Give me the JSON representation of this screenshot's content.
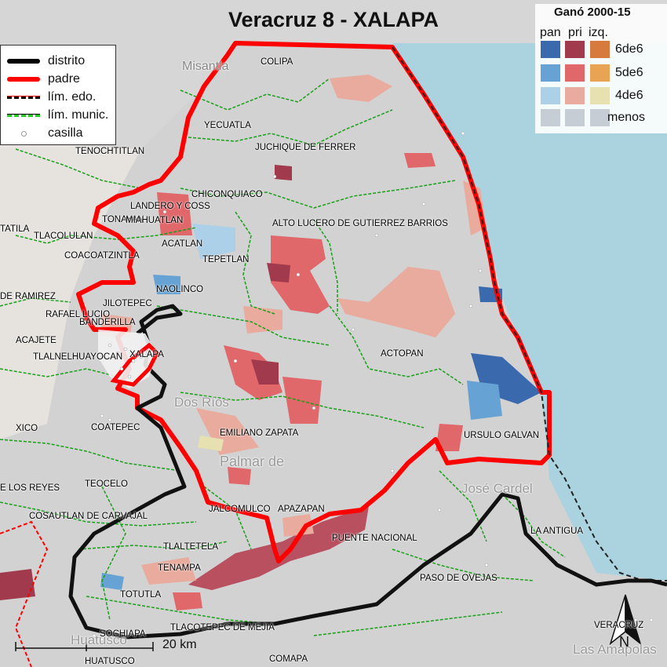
{
  "title": "Veracruz 8 - XALAPA",
  "legend": {
    "items": [
      {
        "label": "distrito",
        "color": "#000000"
      },
      {
        "label": "padre",
        "color": "#ff0000"
      },
      {
        "label": "lím. edo.",
        "color": "#ff0000"
      },
      {
        "label": "lím. munic.",
        "color": "#22cc22"
      },
      {
        "label": "casilla",
        "color": "#999999"
      }
    ]
  },
  "winner_legend": {
    "title": "Ganó 2000-15",
    "parties": [
      "pan",
      "pri",
      "izq."
    ],
    "rows": [
      {
        "label": "6de6",
        "colors": [
          "#3a6aad",
          "#a03a4c",
          "#d77a3e"
        ]
      },
      {
        "label": "5de6",
        "colors": [
          "#66a3d4",
          "#e0676a",
          "#e8a452"
        ]
      },
      {
        "label": "4de6",
        "colors": [
          "#acd0e8",
          "#e8ab9d",
          "#e7e0b0"
        ]
      },
      {
        "label": "menos",
        "colors": [
          "#c6cdd4",
          "#c6cdd4",
          "#c6cdd4"
        ]
      }
    ]
  },
  "municipalities": [
    {
      "name": "COLIPA"
    },
    {
      "name": "YECUATLA"
    },
    {
      "name": "JUCHIQUE DE FERRER"
    },
    {
      "name": "TENOCHTITLAN"
    },
    {
      "name": "CHICONQUIACO"
    },
    {
      "name": "LANDERO Y COSS"
    },
    {
      "name": "TONAYAN"
    },
    {
      "name": "MIAHUATLAN"
    },
    {
      "name": "ALTO LUCERO DE GUTIERREZ BARRIOS"
    },
    {
      "name": "TATILA"
    },
    {
      "name": "TLACOLULAN"
    },
    {
      "name": "ACATLAN"
    },
    {
      "name": "COACOATZINTLA"
    },
    {
      "name": "TEPETLAN"
    },
    {
      "name": "NAOLINCO"
    },
    {
      "name": "DE RAMIREZ"
    },
    {
      "name": "JILOTEPEC"
    },
    {
      "name": "RAFAEL LUCIO"
    },
    {
      "name": "BANDERILLA"
    },
    {
      "name": "ACAJETE"
    },
    {
      "name": "ACTOPAN"
    },
    {
      "name": "TLALNELHUAYOCAN"
    },
    {
      "name": "XALAPA"
    },
    {
      "name": "XICO"
    },
    {
      "name": "COATEPEC"
    },
    {
      "name": "EMILIANO ZAPATA"
    },
    {
      "name": "URSULO GALVAN"
    },
    {
      "name": "TEOCELO"
    },
    {
      "name": "E LOS REYES"
    },
    {
      "name": "COSAUTLAN DE CARVAJAL"
    },
    {
      "name": "JALCOMULCO"
    },
    {
      "name": "APAZAPAN"
    },
    {
      "name": "PUENTE NACIONAL"
    },
    {
      "name": "LA ANTIGUA"
    },
    {
      "name": "TLALTETELA"
    },
    {
      "name": "TENAMPA"
    },
    {
      "name": "PASO DE OVEJAS"
    },
    {
      "name": "TOTUTLA"
    },
    {
      "name": "SOCHIAPA"
    },
    {
      "name": "TLACOTEPEC DE MEJIA"
    },
    {
      "name": "VERACRUZ"
    },
    {
      "name": "HUATUSCO"
    },
    {
      "name": "COMAPA"
    }
  ],
  "basemap_labels": [
    "Misantla",
    "Dos Ríos",
    "Palmar de",
    "José Cardel",
    "Las Amapolas",
    "Huatusco"
  ],
  "scale_label": "20 km",
  "north_label": "N"
}
